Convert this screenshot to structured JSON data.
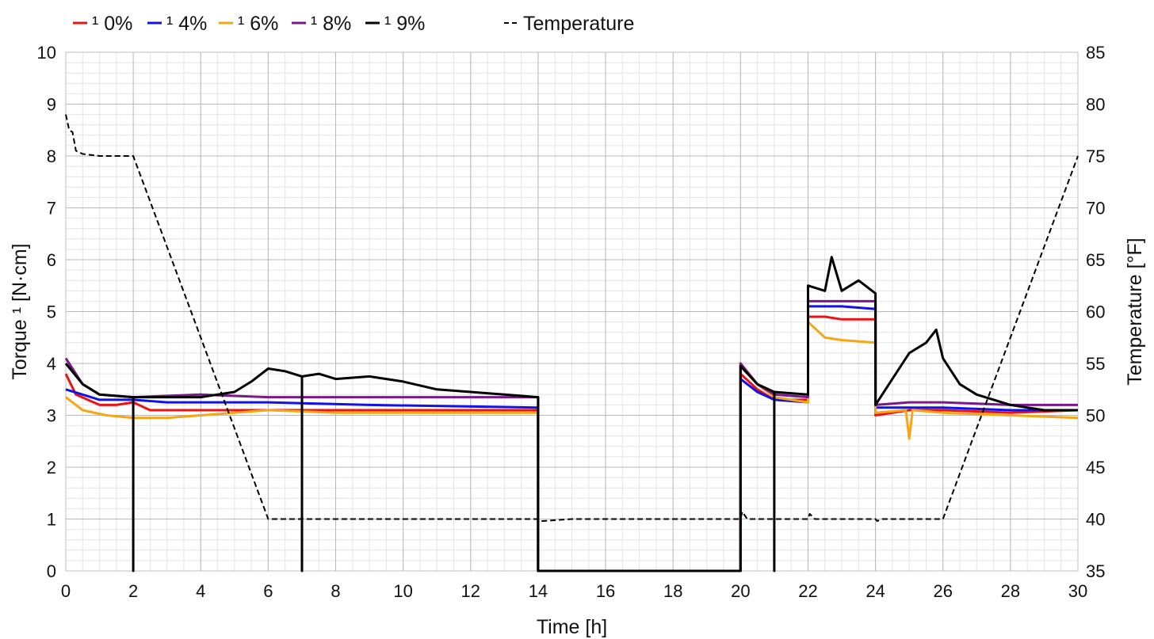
{
  "chart_data": {
    "type": "line",
    "title": "",
    "xlabel": "Time [h]",
    "ylabel": "Torque ¹ [N·cm]",
    "y2label": "Temperature [°F]",
    "xlim": [
      0,
      30
    ],
    "ylim": [
      0,
      10
    ],
    "y2lim": [
      35,
      85
    ],
    "xticks": [
      0,
      2,
      4,
      6,
      8,
      10,
      12,
      14,
      16,
      18,
      20,
      22,
      24,
      26,
      28,
      30
    ],
    "yticks": [
      0,
      1,
      2,
      3,
      4,
      5,
      6,
      7,
      8,
      9,
      10
    ],
    "y2ticks": [
      35,
      40,
      45,
      50,
      55,
      60,
      65,
      70,
      75,
      80,
      85
    ],
    "grid": true,
    "legend_position": "top-left",
    "series": [
      {
        "name": "¹ 0%",
        "color": "#ee1111",
        "axis": "left",
        "dash": false,
        "points": [
          [
            0,
            3.8
          ],
          [
            0.3,
            3.4
          ],
          [
            1,
            3.2
          ],
          [
            1.5,
            3.2
          ],
          [
            2,
            3.25
          ],
          [
            2.5,
            3.1
          ],
          [
            4,
            3.1
          ],
          [
            6,
            3.1
          ],
          [
            8,
            3.1
          ],
          [
            12,
            3.1
          ],
          [
            14,
            3.1
          ],
          [
            14,
            0
          ],
          [
            20,
            0
          ],
          [
            20,
            3.8
          ],
          [
            20.5,
            3.5
          ],
          [
            21,
            3.3
          ],
          [
            22,
            3.3
          ],
          [
            22,
            4.9
          ],
          [
            22.5,
            4.9
          ],
          [
            23,
            4.85
          ],
          [
            24,
            4.85
          ],
          [
            24,
            3.0
          ],
          [
            25,
            3.1
          ],
          [
            26,
            3.1
          ],
          [
            28,
            3.05
          ],
          [
            30,
            3.1
          ]
        ]
      },
      {
        "name": "¹ 4%",
        "color": "#1111ee",
        "axis": "left",
        "dash": false,
        "points": [
          [
            0,
            3.5
          ],
          [
            0.5,
            3.4
          ],
          [
            1,
            3.3
          ],
          [
            2,
            3.3
          ],
          [
            3,
            3.25
          ],
          [
            6,
            3.25
          ],
          [
            9,
            3.2
          ],
          [
            14,
            3.15
          ],
          [
            14,
            0
          ],
          [
            20,
            0
          ],
          [
            20,
            3.7
          ],
          [
            20.5,
            3.45
          ],
          [
            21,
            3.3
          ],
          [
            22,
            3.25
          ],
          [
            22,
            5.1
          ],
          [
            23,
            5.1
          ],
          [
            24,
            5.05
          ],
          [
            24,
            3.15
          ],
          [
            26,
            3.15
          ],
          [
            28,
            3.1
          ],
          [
            30,
            3.1
          ]
        ]
      },
      {
        "name": "¹ 6%",
        "color": "#f5a614",
        "axis": "left",
        "dash": false,
        "points": [
          [
            0,
            3.35
          ],
          [
            0.5,
            3.1
          ],
          [
            1.2,
            3.0
          ],
          [
            2,
            2.95
          ],
          [
            3,
            2.95
          ],
          [
            4,
            3.0
          ],
          [
            5,
            3.05
          ],
          [
            6,
            3.1
          ],
          [
            8,
            3.05
          ],
          [
            10,
            3.05
          ],
          [
            14,
            3.05
          ],
          [
            14,
            0
          ],
          [
            20,
            0
          ],
          [
            20,
            4.0
          ],
          [
            20.5,
            3.6
          ],
          [
            21,
            3.35
          ],
          [
            22,
            3.25
          ],
          [
            22,
            4.8
          ],
          [
            22.5,
            4.5
          ],
          [
            23,
            4.45
          ],
          [
            24,
            4.4
          ],
          [
            24,
            3.05
          ],
          [
            24.9,
            3.1
          ],
          [
            25,
            2.55
          ],
          [
            25.1,
            3.1
          ],
          [
            26,
            3.05
          ],
          [
            28,
            3.0
          ],
          [
            30,
            2.95
          ]
        ]
      },
      {
        "name": "¹ 8%",
        "color": "#7a1a8a",
        "axis": "left",
        "dash": false,
        "points": [
          [
            0,
            4.1
          ],
          [
            0.5,
            3.6
          ],
          [
            1,
            3.4
          ],
          [
            2,
            3.35
          ],
          [
            4,
            3.4
          ],
          [
            6,
            3.35
          ],
          [
            8,
            3.35
          ],
          [
            10,
            3.35
          ],
          [
            12,
            3.35
          ],
          [
            14,
            3.35
          ],
          [
            14,
            0
          ],
          [
            20,
            0
          ],
          [
            20,
            4.0
          ],
          [
            20.5,
            3.6
          ],
          [
            21,
            3.4
          ],
          [
            22,
            3.35
          ],
          [
            22,
            5.2
          ],
          [
            23,
            5.2
          ],
          [
            24,
            5.2
          ],
          [
            24,
            3.2
          ],
          [
            25,
            3.25
          ],
          [
            26,
            3.25
          ],
          [
            28,
            3.2
          ],
          [
            30,
            3.2
          ]
        ]
      },
      {
        "name": "¹ 9%",
        "color": "#000000",
        "axis": "left",
        "dash": false,
        "points": [
          [
            0,
            4.0
          ],
          [
            0.5,
            3.6
          ],
          [
            1,
            3.4
          ],
          [
            2,
            3.35
          ],
          [
            2,
            0
          ],
          [
            2,
            3.35
          ],
          [
            3,
            3.35
          ],
          [
            4,
            3.35
          ],
          [
            5,
            3.45
          ],
          [
            5.5,
            3.65
          ],
          [
            6,
            3.9
          ],
          [
            6.5,
            3.85
          ],
          [
            7,
            3.75
          ],
          [
            7,
            0
          ],
          [
            7,
            3.75
          ],
          [
            7.5,
            3.8
          ],
          [
            8,
            3.7
          ],
          [
            9,
            3.75
          ],
          [
            10,
            3.65
          ],
          [
            11,
            3.5
          ],
          [
            12,
            3.45
          ],
          [
            13,
            3.4
          ],
          [
            14,
            3.35
          ],
          [
            14,
            0
          ],
          [
            20,
            0
          ],
          [
            20,
            3.95
          ],
          [
            20.5,
            3.6
          ],
          [
            21,
            3.45
          ],
          [
            21,
            0
          ],
          [
            21,
            3.45
          ],
          [
            22,
            3.4
          ],
          [
            22,
            5.5
          ],
          [
            22.5,
            5.4
          ],
          [
            22.7,
            6.05
          ],
          [
            23,
            5.4
          ],
          [
            23.5,
            5.6
          ],
          [
            24,
            5.35
          ],
          [
            24,
            3.2
          ],
          [
            24.5,
            3.7
          ],
          [
            25,
            4.2
          ],
          [
            25.5,
            4.4
          ],
          [
            25.8,
            4.65
          ],
          [
            26,
            4.1
          ],
          [
            26.5,
            3.6
          ],
          [
            27,
            3.4
          ],
          [
            28,
            3.2
          ],
          [
            29,
            3.1
          ],
          [
            30,
            3.1
          ]
        ]
      },
      {
        "name": "Temperature",
        "color": "#000000",
        "axis": "right",
        "dash": true,
        "points": [
          [
            0,
            79
          ],
          [
            0.1,
            77.5
          ],
          [
            0.2,
            77.3
          ],
          [
            0.3,
            75.5
          ],
          [
            0.5,
            75.2
          ],
          [
            1,
            75
          ],
          [
            2,
            75
          ],
          [
            6,
            40
          ],
          [
            14,
            40
          ],
          [
            14.1,
            39.8
          ],
          [
            15,
            40
          ],
          [
            20,
            40
          ],
          [
            20.05,
            40.7
          ],
          [
            20.2,
            40
          ],
          [
            22,
            40
          ],
          [
            22.05,
            40.5
          ],
          [
            22.2,
            40
          ],
          [
            24,
            40
          ],
          [
            24.05,
            39.8
          ],
          [
            24.2,
            40
          ],
          [
            26,
            40
          ],
          [
            30,
            75
          ]
        ]
      }
    ]
  }
}
